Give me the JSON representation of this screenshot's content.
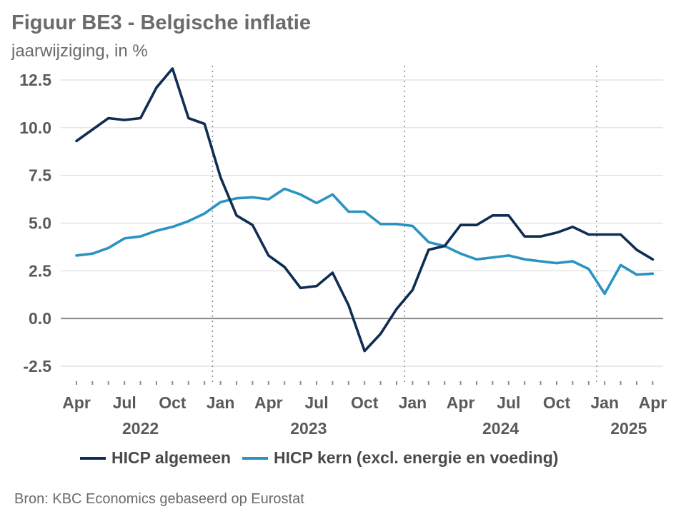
{
  "title": "Figuur BE3 - Belgische inflatie",
  "subtitle": "jaarwijziging, in %",
  "source": "Bron: KBC Economics gebaseerd op Eurostat",
  "colors": {
    "general": "#0f2d52",
    "core": "#2a93c1",
    "grid": "#dddddd",
    "zero": "#888888",
    "text": "#5a5a5a"
  },
  "chart_data": {
    "type": "line",
    "x": [
      "2022-04",
      "2022-05",
      "2022-06",
      "2022-07",
      "2022-08",
      "2022-09",
      "2022-10",
      "2022-11",
      "2022-12",
      "2023-01",
      "2023-02",
      "2023-03",
      "2023-04",
      "2023-05",
      "2023-06",
      "2023-07",
      "2023-08",
      "2023-09",
      "2023-10",
      "2023-11",
      "2023-12",
      "2024-01",
      "2024-02",
      "2024-03",
      "2024-04",
      "2024-05",
      "2024-06",
      "2024-07",
      "2024-08",
      "2024-09",
      "2024-10",
      "2024-11",
      "2024-12",
      "2025-01",
      "2025-02",
      "2025-03",
      "2025-04"
    ],
    "series": [
      {
        "name": "HICP algemeen",
        "values": [
          9.3,
          9.9,
          10.5,
          10.4,
          10.5,
          12.1,
          13.1,
          10.5,
          10.2,
          7.4,
          5.4,
          4.9,
          3.3,
          2.7,
          1.6,
          1.7,
          2.4,
          0.7,
          -1.7,
          -0.8,
          0.5,
          1.5,
          3.6,
          3.8,
          4.9,
          4.9,
          5.4,
          5.4,
          4.3,
          4.3,
          4.5,
          4.8,
          4.4,
          4.4,
          4.4,
          3.6,
          3.1
        ]
      },
      {
        "name": "HICP kern (excl. energie en voeding)",
        "values": [
          3.3,
          3.4,
          3.7,
          4.2,
          4.3,
          4.6,
          4.8,
          5.1,
          5.5,
          6.1,
          6.3,
          6.35,
          6.25,
          6.8,
          6.5,
          6.05,
          6.5,
          5.6,
          5.6,
          4.95,
          4.95,
          4.85,
          4.0,
          3.8,
          3.4,
          3.1,
          3.2,
          3.3,
          3.1,
          3.0,
          2.9,
          3.0,
          2.6,
          1.3,
          2.8,
          2.3,
          2.35
        ]
      }
    ],
    "ylim": [
      -2.5,
      12.5
    ],
    "yticks": [
      "-2.5",
      "0.0",
      "2.5",
      "5.0",
      "7.5",
      "10.0",
      "12.5"
    ],
    "month_labels": [
      {
        "date": "2022-04",
        "label": "Apr"
      },
      {
        "date": "2022-07",
        "label": "Jul"
      },
      {
        "date": "2022-10",
        "label": "Oct"
      },
      {
        "date": "2023-01",
        "label": "Jan"
      },
      {
        "date": "2023-04",
        "label": "Apr"
      },
      {
        "date": "2023-07",
        "label": "Jul"
      },
      {
        "date": "2023-10",
        "label": "Oct"
      },
      {
        "date": "2024-01",
        "label": "Jan"
      },
      {
        "date": "2024-04",
        "label": "Apr"
      },
      {
        "date": "2024-07",
        "label": "Jul"
      },
      {
        "date": "2024-10",
        "label": "Oct"
      },
      {
        "date": "2025-01",
        "label": "Jan"
      },
      {
        "date": "2025-04",
        "label": "Apr"
      }
    ],
    "year_labels": [
      {
        "label": "2022",
        "from": "2022-04",
        "to": "2022-12"
      },
      {
        "label": "2023",
        "from": "2023-01",
        "to": "2023-12"
      },
      {
        "label": "2024",
        "from": "2024-01",
        "to": "2024-12"
      },
      {
        "label": "2025",
        "from": "2025-01",
        "to": "2025-04"
      }
    ],
    "year_separators": [
      "2023-01",
      "2024-01",
      "2025-01"
    ],
    "grid": true,
    "legend": "bottom"
  }
}
